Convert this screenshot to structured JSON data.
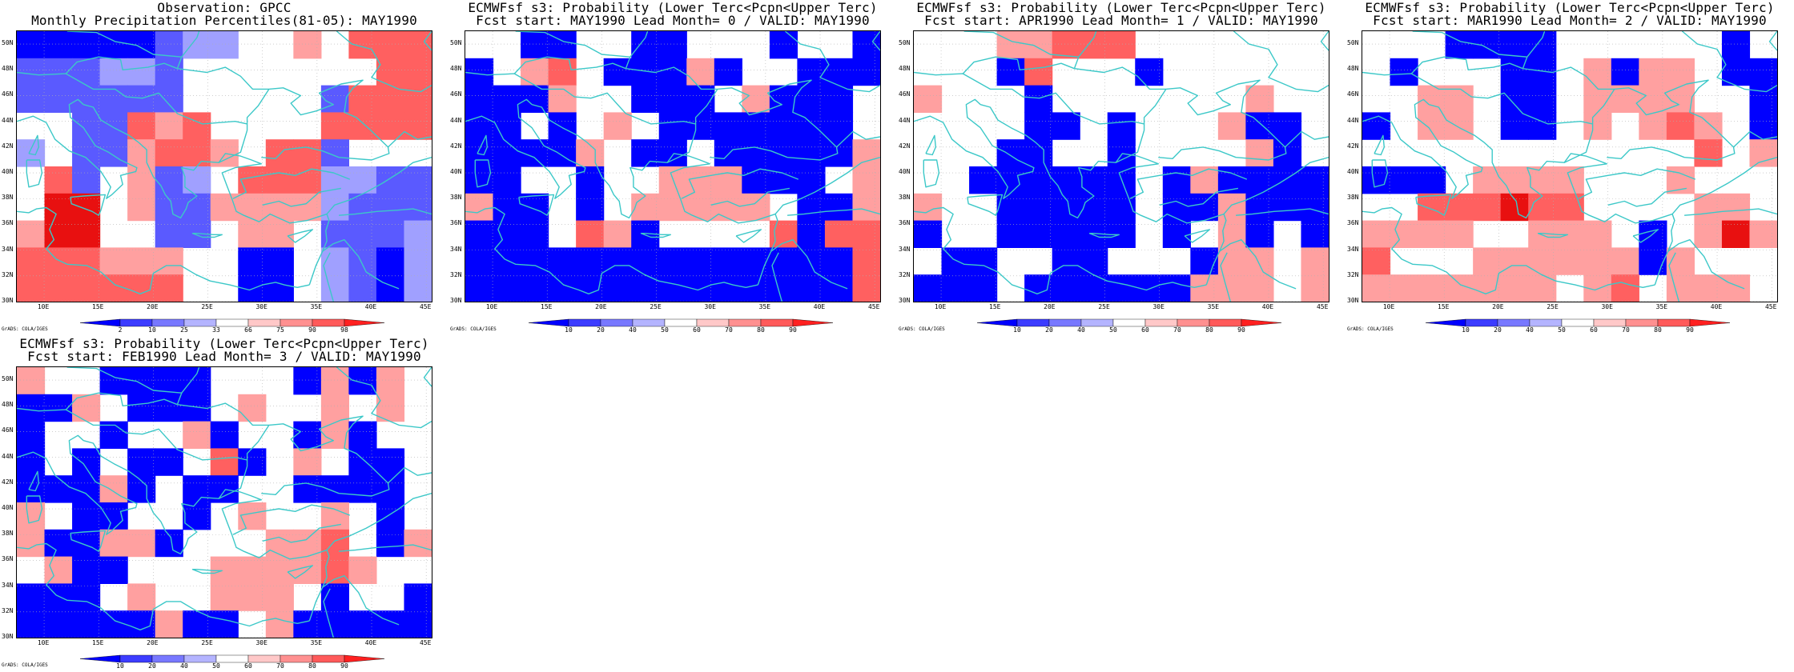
{
  "credit": "GrADS: COLA/IGES",
  "lat_labels": [
    "50N",
    "48N",
    "46N",
    "44N",
    "42N",
    "40N",
    "38N",
    "36N",
    "34N",
    "32N",
    "30N"
  ],
  "lon_labels": [
    "10E",
    "15E",
    "20E",
    "25E",
    "30E",
    "35E",
    "40E",
    "45E"
  ],
  "colors": {
    "b": "#0000ff",
    "m": "#5a5aff",
    "l": "#a0a0ff",
    "p": "#ffa0a0",
    "s": "#ff6060",
    "r": "#e81010",
    "w": "#ffffff",
    "coast": "#3cc8c8",
    "grid": "#b0b0b0"
  },
  "grid_spec": {
    "cols": 15,
    "rows": 10,
    "lon_range": [
      7.5,
      45.5
    ],
    "lat_range": [
      30,
      51
    ]
  },
  "panels": [
    {
      "title_line1": "Observation: GPCC",
      "title_line2": "Monthly Precipitation Percentiles(81-05): MAY1990",
      "colorbar": [
        "2",
        "10",
        "25",
        "33",
        "66",
        "75",
        "90",
        "98"
      ],
      "cells": [
        "bbbbbmllwwpwsss",
        "mmmllmwwwwwwwss",
        "mmmmmmwwwwwmsss",
        "wwmmspswwwwssss",
        "lwmmpsspwssmwww",
        "wsmwpmlwsssllmm",
        "wrrwpmmpppplmmm",
        "prrwwmmwppwmmml",
        "ssspppwwbbwlmbl",
        "sssssswwbbwlmbl"
      ]
    },
    {
      "title_line1": "ECMWFsf s3: Probability (Lower Terc<Pcpn<Upper Terc)",
      "title_line2": "Fcst start: MAY1990   Lead Month= 0 / VALID: MAY1990",
      "colorbar": [
        "10",
        "20",
        "40",
        "50",
        "60",
        "70",
        "80",
        "90"
      ],
      "cells": [
        "wwbbwwbbwwwbwwb",
        "bwpswbbbpbwwbbb",
        "bbbpwwbbbwpbbbw",
        "bbwbwpwbbbbbbbw",
        "bbbbpwbbwbbbbbp",
        "bbwwbwwpppbbbwp",
        "pbbwbwpppppwbbp",
        "bbbwspbwwwwsbss",
        "bbbbbbbbbbbbbbs",
        "bbbbbbbbbbbbbbs"
      ]
    },
    {
      "title_line1": "ECMWFsf s3: Probability (Lower Terc<Pcpn<Upper Terc)",
      "title_line2": "Fcst start: APR1990   Lead Month= 1 / VALID: MAY1990",
      "colorbar": [
        "10",
        "20",
        "40",
        "50",
        "60",
        "70",
        "80",
        "90"
      ],
      "cells": [
        "wwwppssswwwwwww",
        "wwwbswwwbwwwwww",
        "pwwwbwwwwwwwpww",
        "wwwwbbwbwwwpbbw",
        "wwwbbwwbwwwwpbw",
        "wwbbbbbbwbpbbbb",
        "pwwbbbbbwbbpbbb",
        "bwwbbbbbwbwpbwb",
        "wbbwwbbwwwbppwp",
        "bbbwbbbbbbpppwp"
      ]
    },
    {
      "title_line1": "ECMWFsf s3: Probability (Lower Terc<Pcpn<Upper Terc)",
      "title_line2": "Fcst start: MAR1990   Lead Month= 2 / VALID: MAY1990",
      "colorbar": [
        "10",
        "20",
        "40",
        "50",
        "60",
        "70",
        "80",
        "90"
      ],
      "cells": [
        "wwwbbbbwwwwwwbw",
        "wbwwwbbwpbppwbb",
        "wwppwbbwppppwwb",
        "bwppwbbwpwpspwb",
        "wwwwwwwwwwwwswp",
        "bbbwppppwwwpwww",
        "wwsssrsswwwwppw",
        "ppppwwpppwbwprp",
        "swwwppppppbpwww",
        "pppppppwpswpppw"
      ]
    },
    {
      "title_line1": "ECMWFsf s3: Probability (Lower Terc<Pcpn<Upper Terc)",
      "title_line2": "Fcst start: FEB1990   Lead Month= 3 / VALID: MAY1990",
      "colorbar": [
        "10",
        "20",
        "40",
        "50",
        "60",
        "70",
        "80",
        "90"
      ],
      "cells": [
        "pwwbbbbwwwbpbpw",
        "bbpwbbbwpwwpwpw",
        "bwwbwwpbwwbpbww",
        "bwbwbbwsbwpwbbw",
        "bbbpbwbbwwbbbbw",
        "pwbbwwbwpwwpwbw",
        "pbbppbwwwppswbp",
        "wpbbwwwppppspww",
        "bbbwpwwpppwbwwb",
        "bbbbbpbbwpbbbbb"
      ]
    }
  ]
}
